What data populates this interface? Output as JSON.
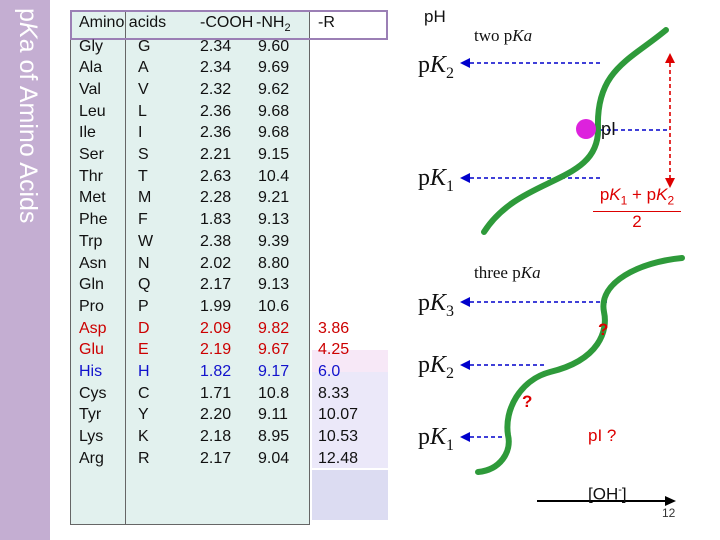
{
  "slide": {
    "title_prefix": "p",
    "title_italic": "K",
    "title_rest": "a of Amino Acids",
    "page_number": "12"
  },
  "table": {
    "headers": {
      "amino_acids": "Amino acids",
      "cooh": "-COOH",
      "nh2_prefix": "-NH",
      "nh2_sub": "2",
      "r": "-R"
    },
    "rows": [
      {
        "name": "Gly",
        "code": "G",
        "cooh": "2.34",
        "nh2": "9.60",
        "r": ""
      },
      {
        "name": "Ala",
        "code": "A",
        "cooh": "2.34",
        "nh2": "9.69",
        "r": ""
      },
      {
        "name": "Val",
        "code": "V",
        "cooh": "2.32",
        "nh2": "9.62",
        "r": ""
      },
      {
        "name": "Leu",
        "code": "L",
        "cooh": "2.36",
        "nh2": "9.68",
        "r": ""
      },
      {
        "name": "Ile",
        "code": "I",
        "cooh": "2.36",
        "nh2": "9.68",
        "r": ""
      },
      {
        "name": "Ser",
        "code": "S",
        "cooh": "2.21",
        "nh2": "9.15",
        "r": ""
      },
      {
        "name": "Thr",
        "code": "T",
        "cooh": "2.63",
        "nh2": "10.4",
        "r": ""
      },
      {
        "name": "Met",
        "code": "M",
        "cooh": "2.28",
        "nh2": "9.21",
        "r": ""
      },
      {
        "name": "Phe",
        "code": "F",
        "cooh": "1.83",
        "nh2": "9.13",
        "r": ""
      },
      {
        "name": "Trp",
        "code": "W",
        "cooh": "2.38",
        "nh2": "9.39",
        "r": ""
      },
      {
        "name": "Asn",
        "code": "N",
        "cooh": "2.02",
        "nh2": "8.80",
        "r": ""
      },
      {
        "name": "Gln",
        "code": "Q",
        "cooh": "2.17",
        "nh2": "9.13",
        "r": ""
      },
      {
        "name": "Pro",
        "code": "P",
        "cooh": "1.99",
        "nh2": "10.6",
        "r": ""
      },
      {
        "name": "Asp",
        "code": "D",
        "cooh": "2.09",
        "nh2": "9.82",
        "r": "3.86",
        "color": "acid"
      },
      {
        "name": "Glu",
        "code": "E",
        "cooh": "2.19",
        "nh2": "9.67",
        "r": "4.25",
        "color": "acid"
      },
      {
        "name": "His",
        "code": "H",
        "cooh": "1.82",
        "nh2": "9.17",
        "r": "6.0",
        "color": "basic"
      },
      {
        "name": "Cys",
        "code": "C",
        "cooh": "1.71",
        "nh2": "10.8",
        "r": "8.33"
      },
      {
        "name": "Tyr",
        "code": "Y",
        "cooh": "2.20",
        "nh2": "9.11",
        "r": "10.07"
      },
      {
        "name": "Lys",
        "code": "K",
        "cooh": "2.18",
        "nh2": "8.95",
        "r": "10.53"
      },
      {
        "name": "Arg",
        "code": "R",
        "cooh": "2.17",
        "nh2": "9.04",
        "r": "12.48"
      }
    ]
  },
  "curves": {
    "ph_label": "pH",
    "top_caption_prefix": "two p",
    "top_caption_italic": "Ka",
    "bottom_caption_prefix": "three p",
    "bottom_caption_italic": "Ka",
    "pk_p": "p",
    "pk_K": "K",
    "pk2": "2",
    "pk1": "1",
    "pk3": "3",
    "pi_label": "pI",
    "formula_a": "p",
    "formula_K": "K",
    "formula_sub1": "1",
    "formula_plus": " + p",
    "formula_sub2": "2",
    "formula_div": "2",
    "question1": "?",
    "question2": "?",
    "pi_question": "pI ?",
    "oh_prefix": "[OH",
    "oh_sup": "-",
    "oh_suffix": "]",
    "colors": {
      "curve": "#2e9a3a",
      "dashed": "#0000cc",
      "pi_dot": "#dd22dd",
      "highlight": "#dd0000"
    }
  }
}
